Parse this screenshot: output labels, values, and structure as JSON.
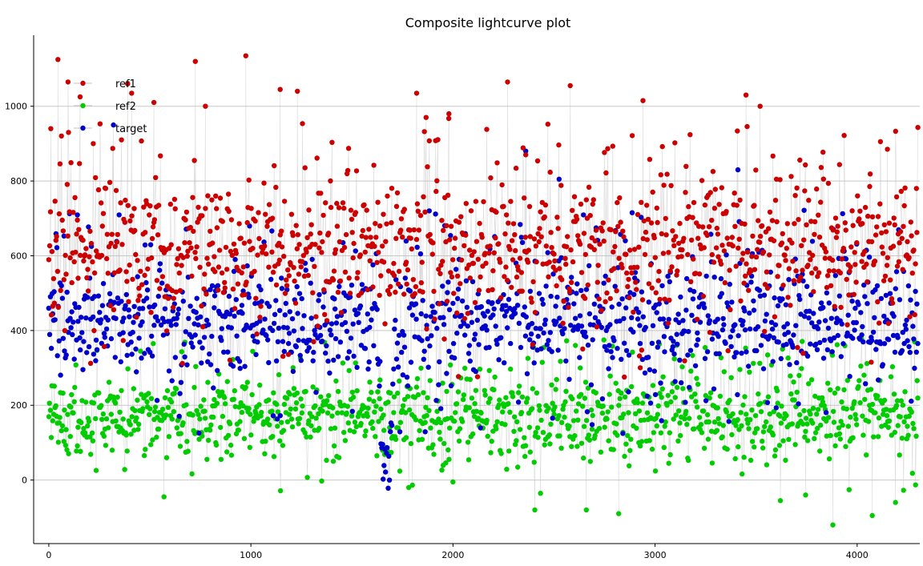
{
  "chart_data": {
    "type": "scatter",
    "title": "Composite lightcurve plot",
    "xlabel": "",
    "ylabel": "",
    "xlim": [
      -75,
      4310
    ],
    "ylim": [
      -170,
      1190
    ],
    "x_ticks": [
      "0",
      "1000",
      "2000",
      "3000",
      "4000"
    ],
    "y_ticks": [
      "0",
      "200",
      "400",
      "600",
      "800",
      "1000"
    ],
    "grid": true,
    "legend_position": "top-left",
    "connector_line_color": "#c0c0c0",
    "x_range": [
      0,
      4300
    ],
    "point_count_per_series": 1100,
    "series": [
      {
        "name": "ref1",
        "color": "#cc0000",
        "baseline": 620,
        "spread": 110,
        "outliers": [
          [
            10,
            940
          ],
          [
            45,
            1125
          ],
          [
            95,
            1065
          ],
          [
            155,
            1025
          ],
          [
            390,
            1060
          ],
          [
            410,
            1035
          ],
          [
            520,
            1010
          ],
          [
            725,
            1120
          ],
          [
            775,
            1000
          ],
          [
            975,
            1135
          ],
          [
            1145,
            1045
          ],
          [
            1230,
            1040
          ],
          [
            1820,
            1035
          ],
          [
            1980,
            980
          ],
          [
            2270,
            1065
          ],
          [
            2580,
            1055
          ],
          [
            2940,
            1015
          ],
          [
            3450,
            1030
          ],
          [
            3520,
            1000
          ],
          [
            2360,
            870
          ],
          [
            4150,
            885
          ]
        ],
        "dip": {
          "center": 1670,
          "halfwidth": 45,
          "depth": 0
        }
      },
      {
        "name": "ref2",
        "color": "#00cc00",
        "baseline": 170,
        "spread": 65,
        "outliers": [
          [
            2405,
            -80
          ],
          [
            2660,
            -80
          ],
          [
            2820,
            -90
          ],
          [
            3880,
            -120
          ],
          [
            4075,
            -95
          ],
          [
            4190,
            -60
          ],
          [
            570,
            -45
          ],
          [
            3745,
            -40
          ],
          [
            3620,
            -55
          ]
        ],
        "dip": {
          "center": 1670,
          "halfwidth": 45,
          "depth": 0
        }
      },
      {
        "name": "target",
        "color": "#0000cc",
        "baseline": 420,
        "spread": 95,
        "outliers": [
          [
            320,
            950
          ],
          [
            2360,
            880
          ],
          [
            3410,
            830
          ],
          [
            2525,
            805
          ]
        ],
        "dip": {
          "center": 1670,
          "halfwidth": 45,
          "depth": 380
        }
      }
    ]
  }
}
